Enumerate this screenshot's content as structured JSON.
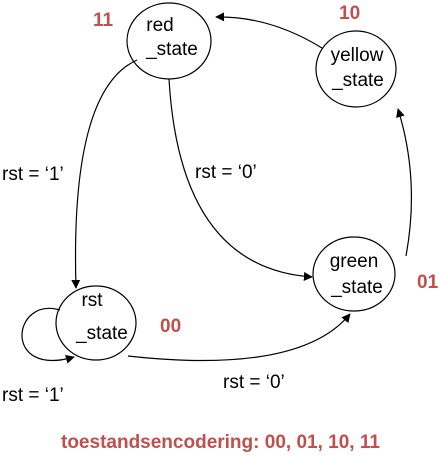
{
  "colors": {
    "encoding": "#c0504d",
    "stroke": "#000000"
  },
  "states": {
    "red": {
      "line1": "red",
      "line2": "_state",
      "code": "11"
    },
    "yellow": {
      "line1": "yellow",
      "line2": "_state",
      "code": "10"
    },
    "green": {
      "line1": "green",
      "line2": "_state",
      "code": "01"
    },
    "rst": {
      "line1": "rst",
      "line2": "_state",
      "code": "00"
    }
  },
  "transitions": {
    "red_to_rst": "rst = ‘1’",
    "red_to_green": "rst = ‘0’",
    "rst_self": "rst = ‘1’",
    "rst_to_green": "rst = ‘0’"
  },
  "footer": "toestandsencodering: 00, 01, 10, 11"
}
